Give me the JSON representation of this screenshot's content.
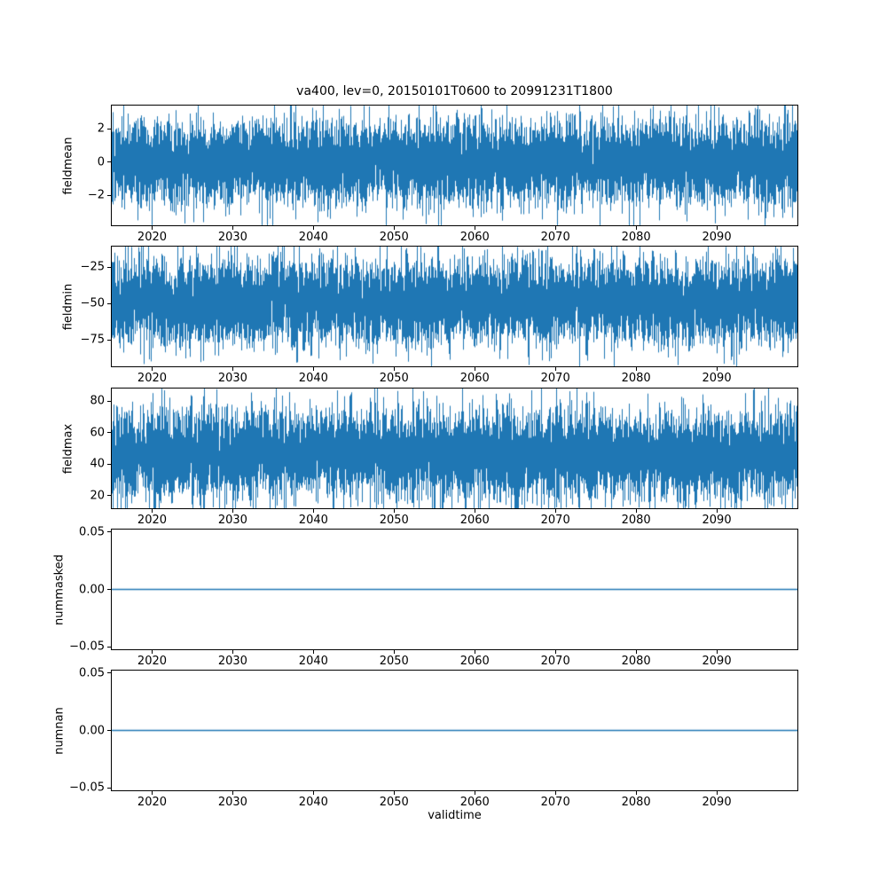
{
  "figure": {
    "title": "va400, lev=0, 20150101T0600 to 20991231T1800",
    "xlabel": "validtime",
    "line_color": "#1f77b4",
    "background": "#ffffff"
  },
  "chart_data": [
    {
      "type": "line",
      "ylabel": "fieldmean",
      "x_range": [
        2015,
        2100
      ],
      "xticks": [
        2020,
        2030,
        2040,
        2050,
        2060,
        2070,
        2080,
        2090
      ],
      "xtick_labels": [
        "2020",
        "2030",
        "2040",
        "2050",
        "2060",
        "2070",
        "2080",
        "2090"
      ],
      "ylim": [
        -3.8,
        3.4
      ],
      "yticks": [
        -2,
        0,
        2
      ],
      "ytick_labels": [
        "−2",
        "0",
        "2"
      ],
      "series": {
        "name": "fieldmean",
        "kind": "noise",
        "mean": 0,
        "std": 1.2,
        "samples": 12,
        "spike_prob": 0.04,
        "spike_scale": 1.4,
        "seed": 101
      }
    },
    {
      "type": "line",
      "ylabel": "fieldmin",
      "x_range": [
        2015,
        2100
      ],
      "xticks": [
        2020,
        2030,
        2040,
        2050,
        2060,
        2070,
        2080,
        2090
      ],
      "xtick_labels": [
        "2020",
        "2030",
        "2040",
        "2050",
        "2060",
        "2070",
        "2080",
        "2090"
      ],
      "ylim": [
        -93,
        -11
      ],
      "yticks": [
        -25,
        -50,
        -75
      ],
      "ytick_labels": [
        "−25",
        "−50",
        "−75"
      ],
      "series": {
        "name": "fieldmin",
        "kind": "noise",
        "mean": -49,
        "std": 14,
        "samples": 12,
        "spike_prob": 0.04,
        "spike_scale": 1.35,
        "seed": 202
      }
    },
    {
      "type": "line",
      "ylabel": "fieldmax",
      "x_range": [
        2015,
        2100
      ],
      "xticks": [
        2020,
        2030,
        2040,
        2050,
        2060,
        2070,
        2080,
        2090
      ],
      "xtick_labels": [
        "2020",
        "2030",
        "2040",
        "2050",
        "2060",
        "2070",
        "2080",
        "2090"
      ],
      "ylim": [
        12,
        88
      ],
      "yticks": [
        20,
        40,
        60,
        80
      ],
      "ytick_labels": [
        "20",
        "40",
        "60",
        "80"
      ],
      "series": {
        "name": "fieldmax",
        "kind": "noise",
        "mean": 46,
        "std": 13.5,
        "samples": 12,
        "spike_prob": 0.04,
        "spike_scale": 1.35,
        "seed": 303
      }
    },
    {
      "type": "line",
      "ylabel": "nummasked",
      "x_range": [
        2015,
        2100
      ],
      "xticks": [
        2020,
        2030,
        2040,
        2050,
        2060,
        2070,
        2080,
        2090
      ],
      "xtick_labels": [
        "2020",
        "2030",
        "2040",
        "2050",
        "2060",
        "2070",
        "2080",
        "2090"
      ],
      "ylim": [
        -0.052,
        0.052
      ],
      "yticks": [
        -0.05,
        0,
        0.05
      ],
      "ytick_labels": [
        "−0.05",
        "0.00",
        "0.05"
      ],
      "series": {
        "name": "nummasked",
        "kind": "constant",
        "value": 0
      }
    },
    {
      "type": "line",
      "ylabel": "numnan",
      "x_range": [
        2015,
        2100
      ],
      "xticks": [
        2020,
        2030,
        2040,
        2050,
        2060,
        2070,
        2080,
        2090
      ],
      "xtick_labels": [
        "2020",
        "2030",
        "2040",
        "2050",
        "2060",
        "2070",
        "2080",
        "2090"
      ],
      "ylim": [
        -0.052,
        0.052
      ],
      "yticks": [
        -0.05,
        0,
        0.05
      ],
      "ytick_labels": [
        "−0.05",
        "0.00",
        "0.05"
      ],
      "series": {
        "name": "numnan",
        "kind": "constant",
        "value": 0
      }
    }
  ]
}
